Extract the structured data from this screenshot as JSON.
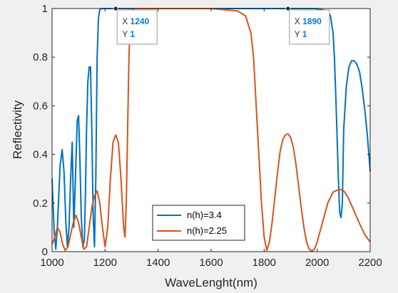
{
  "chart_data": {
    "type": "line",
    "title": "",
    "xlabel": "WaveLenght(nm)",
    "ylabel": "Reflectivity",
    "xlim": [
      1000,
      2200
    ],
    "ylim": [
      0,
      1
    ],
    "xticks": [
      1000,
      1200,
      1400,
      1600,
      1800,
      2000,
      2200
    ],
    "xtick_labels": [
      "1000",
      "1200",
      "1400",
      "1600",
      "1800",
      "2000",
      "2200"
    ],
    "yticks": [
      0,
      0.2,
      0.4,
      0.6,
      0.8,
      1
    ],
    "ytick_labels": [
      "0",
      "0.2",
      "0.4",
      "0.6",
      "0.8",
      "1"
    ],
    "grid": false,
    "legend": {
      "position": "bottom-center"
    },
    "series": [
      {
        "name": "n(h)=3.4",
        "color": "#0072bd",
        "x": [
          1000,
          1008,
          1014,
          1020,
          1025,
          1030,
          1038,
          1045,
          1052,
          1058,
          1064,
          1070,
          1076,
          1082,
          1088,
          1095,
          1100,
          1105,
          1110,
          1116,
          1122,
          1126,
          1130,
          1135,
          1140,
          1145,
          1150,
          1155,
          1160,
          1165,
          1170,
          1175,
          1180,
          1185,
          1190,
          1200,
          1220,
          1240,
          1300,
          1400,
          1500,
          1600,
          1700,
          1800,
          1890,
          1950,
          2000,
          2040,
          2050,
          2060,
          2065,
          2070,
          2075,
          2080,
          2085,
          2090,
          2095,
          2100,
          2110,
          2120,
          2130,
          2140,
          2150,
          2160,
          2170,
          2180,
          2190,
          2200
        ],
        "y": [
          0.3,
          0.08,
          0.01,
          0.1,
          0.22,
          0.35,
          0.42,
          0.33,
          0.12,
          0.02,
          0.1,
          0.3,
          0.45,
          0.1,
          0.3,
          0.54,
          0.56,
          0.38,
          0.15,
          0.02,
          0.05,
          0.25,
          0.5,
          0.7,
          0.76,
          0.76,
          0.5,
          0.15,
          0.02,
          0.3,
          0.8,
          0.96,
          0.995,
          1,
          1,
          1,
          1,
          1,
          1,
          1,
          1,
          1,
          1,
          1,
          1,
          1,
          1,
          0.99,
          0.97,
          0.9,
          0.8,
          0.65,
          0.48,
          0.3,
          0.16,
          0.14,
          0.2,
          0.5,
          0.68,
          0.76,
          0.785,
          0.785,
          0.77,
          0.74,
          0.67,
          0.58,
          0.47,
          0.33
        ]
      },
      {
        "name": "n(h)=2.25",
        "color": "#d95319",
        "x": [
          1000,
          1010,
          1020,
          1030,
          1040,
          1050,
          1060,
          1070,
          1080,
          1090,
          1100,
          1110,
          1120,
          1130,
          1140,
          1150,
          1160,
          1170,
          1180,
          1190,
          1200,
          1210,
          1220,
          1230,
          1240,
          1250,
          1260,
          1270,
          1275,
          1280,
          1285,
          1290,
          1295,
          1300,
          1310,
          1320,
          1340,
          1400,
          1500,
          1600,
          1700,
          1730,
          1750,
          1760,
          1770,
          1780,
          1790,
          1800,
          1810,
          1820,
          1830,
          1840,
          1850,
          1860,
          1870,
          1880,
          1890,
          1900,
          1910,
          1920,
          1930,
          1940,
          1950,
          1960,
          1970,
          1980,
          1990,
          2000,
          2020,
          2040,
          2060,
          2080,
          2090,
          2100,
          2110,
          2120,
          2140,
          2160,
          2180,
          2200
        ],
        "y": [
          0.03,
          0.06,
          0.1,
          0.08,
          0.03,
          0.005,
          0.02,
          0.07,
          0.12,
          0.15,
          0.12,
          0.06,
          0.01,
          0.02,
          0.1,
          0.18,
          0.23,
          0.25,
          0.2,
          0.1,
          0.02,
          0.1,
          0.3,
          0.45,
          0.48,
          0.45,
          0.3,
          0.1,
          0.06,
          0.2,
          0.5,
          0.8,
          0.95,
          0.99,
          1,
          1,
          1,
          1,
          1,
          1,
          0.99,
          0.97,
          0.9,
          0.8,
          0.6,
          0.4,
          0.2,
          0.06,
          0.005,
          0.04,
          0.12,
          0.22,
          0.32,
          0.41,
          0.46,
          0.48,
          0.485,
          0.47,
          0.43,
          0.36,
          0.27,
          0.18,
          0.1,
          0.04,
          0.01,
          0.002,
          0.01,
          0.04,
          0.12,
          0.2,
          0.245,
          0.255,
          0.255,
          0.25,
          0.235,
          0.215,
          0.165,
          0.115,
          0.07,
          0.04
        ]
      }
    ],
    "datatips": [
      {
        "x_label": "X",
        "y_label": "Y",
        "x": 1240,
        "y": 1,
        "x_text": "1240",
        "y_text": "1"
      },
      {
        "x_label": "X",
        "y_label": "Y",
        "x": 1890,
        "y": 1,
        "x_text": "1890",
        "y_text": "1"
      }
    ]
  }
}
